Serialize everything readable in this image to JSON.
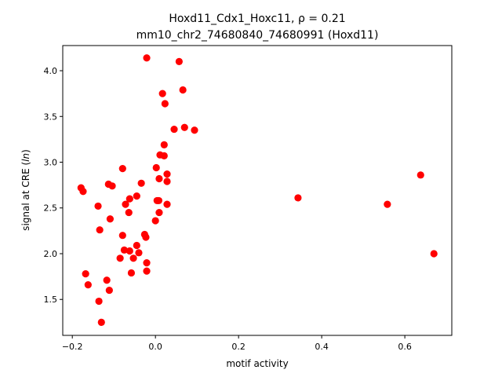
{
  "chart_data": {
    "type": "scatter",
    "title_line1": "Hoxd11_Cdx1_Hoxc11, ρ = 0.21",
    "title_line2": "mm10_chr2_74680840_74680991 (Hoxd11)",
    "xlabel": "motif activity",
    "ylabel": "signal at CRE (ln)",
    "xlim": [
      -0.223,
      0.713
    ],
    "ylim": [
      1.107,
      4.275
    ],
    "xticks": [
      -0.2,
      0.0,
      0.2,
      0.4,
      0.6
    ],
    "xtick_labels": [
      "−0.2",
      "0.0",
      "0.2",
      "0.4",
      "0.6"
    ],
    "yticks": [
      1.5,
      2.0,
      2.5,
      3.0,
      3.5,
      4.0
    ],
    "ytick_labels": [
      "1.5",
      "2.0",
      "2.5",
      "3.0",
      "3.5",
      "4.0"
    ],
    "grid": false,
    "marker_color": "#ff0000",
    "points": [
      [
        -0.021,
        4.14
      ],
      [
        0.057,
        4.1
      ],
      [
        0.066,
        3.79
      ],
      [
        0.017,
        3.75
      ],
      [
        0.023,
        3.64
      ],
      [
        0.045,
        3.36
      ],
      [
        0.07,
        3.38
      ],
      [
        0.094,
        3.35
      ],
      [
        0.021,
        3.19
      ],
      [
        0.011,
        3.08
      ],
      [
        0.021,
        3.07
      ],
      [
        -0.079,
        2.93
      ],
      [
        0.002,
        2.94
      ],
      [
        0.028,
        2.87
      ],
      [
        0.009,
        2.82
      ],
      [
        0.028,
        2.79
      ],
      [
        -0.179,
        2.72
      ],
      [
        -0.174,
        2.68
      ],
      [
        -0.113,
        2.76
      ],
      [
        -0.104,
        2.74
      ],
      [
        -0.034,
        2.77
      ],
      [
        -0.045,
        2.63
      ],
      [
        -0.062,
        2.6
      ],
      [
        -0.072,
        2.54
      ],
      [
        0.004,
        2.58
      ],
      [
        0.008,
        2.58
      ],
      [
        0.028,
        2.54
      ],
      [
        -0.138,
        2.52
      ],
      [
        -0.064,
        2.45
      ],
      [
        0.009,
        2.45
      ],
      [
        0.0,
        2.36
      ],
      [
        -0.109,
        2.38
      ],
      [
        -0.134,
        2.26
      ],
      [
        -0.079,
        2.2
      ],
      [
        -0.026,
        2.21
      ],
      [
        -0.023,
        2.18
      ],
      [
        -0.075,
        2.04
      ],
      [
        -0.062,
        2.03
      ],
      [
        -0.045,
        2.09
      ],
      [
        -0.04,
        2.01
      ],
      [
        -0.085,
        1.95
      ],
      [
        -0.053,
        1.95
      ],
      [
        -0.021,
        1.9
      ],
      [
        -0.021,
        1.81
      ],
      [
        -0.058,
        1.79
      ],
      [
        -0.168,
        1.78
      ],
      [
        -0.162,
        1.66
      ],
      [
        -0.117,
        1.71
      ],
      [
        -0.111,
        1.6
      ],
      [
        -0.136,
        1.48
      ],
      [
        -0.13,
        1.25
      ],
      [
        0.343,
        2.61
      ],
      [
        0.558,
        2.54
      ],
      [
        0.638,
        2.86
      ],
      [
        0.67,
        2.0
      ]
    ]
  }
}
